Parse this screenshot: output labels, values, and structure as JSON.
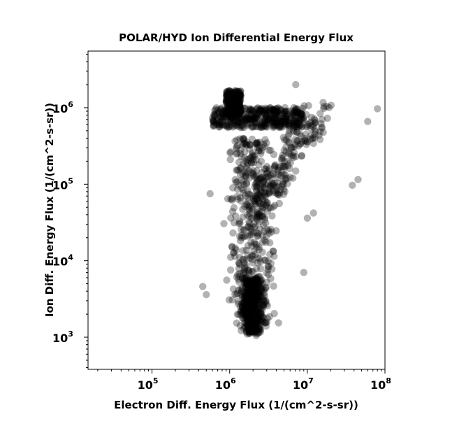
{
  "chart_data": {
    "type": "scatter",
    "title": "POLAR/HYD  Ion Differential Energy Flux",
    "xlabel": "Electron Diff. Energy Flux (1/(cm^2-s-sr))",
    "ylabel": "Ion Diff. Energy Flux (1/(cm^2-s-sr))",
    "xscale": "log",
    "yscale": "log",
    "xlim": [
      15000,
      100000000
    ],
    "ylim": [
      380,
      5500000
    ],
    "xticks": [
      {
        "base": "10",
        "exp": "5",
        "value": 100000
      },
      {
        "base": "10",
        "exp": "6",
        "value": 1000000
      },
      {
        "base": "10",
        "exp": "7",
        "value": 10000000
      },
      {
        "base": "10",
        "exp": "8",
        "value": 100000000
      }
    ],
    "yticks": [
      {
        "base": "10",
        "exp": "3",
        "value": 1000
      },
      {
        "base": "10",
        "exp": "4",
        "value": 10000
      },
      {
        "base": "10",
        "exp": "5",
        "value": 100000
      },
      {
        "base": "10",
        "exp": "6",
        "value": 1000000
      }
    ],
    "grid": false,
    "marker_color": "#000000",
    "marker_opacity": 0.3,
    "clusters": [
      {
        "name": "upper-band",
        "x_range": [
          600000,
          9000000
        ],
        "y_range": [
          550000,
          1000000
        ],
        "density": "very high"
      },
      {
        "name": "upper-blob",
        "x_range": [
          900000,
          1400000
        ],
        "y_range": [
          800000,
          1700000
        ],
        "density": "high"
      },
      {
        "name": "diagonal-arm",
        "x_range": [
          2000000,
          14000000
        ],
        "y_range": [
          40000,
          900000
        ],
        "density": "high"
      },
      {
        "name": "central-column",
        "x_range": [
          700000,
          5000000
        ],
        "y_range": [
          1500,
          400000
        ],
        "density": "very high"
      },
      {
        "name": "lower-core",
        "x_range": [
          1200000,
          3200000
        ],
        "y_range": [
          1100,
          6000
        ],
        "density": "very high"
      }
    ],
    "outliers": [
      {
        "x": 7100000,
        "y": 2000000
      },
      {
        "x": 80000000,
        "y": 970000
      },
      {
        "x": 60000000,
        "y": 660000
      },
      {
        "x": 45000000,
        "y": 115000
      },
      {
        "x": 38000000,
        "y": 97000
      },
      {
        "x": 9000000,
        "y": 7000
      },
      {
        "x": 450000,
        "y": 4600
      },
      {
        "x": 500000,
        "y": 3600
      },
      {
        "x": 2200000,
        "y": 1050
      },
      {
        "x": 12000000,
        "y": 42000
      },
      {
        "x": 10000000,
        "y": 36000
      },
      {
        "x": 560000,
        "y": 75000
      }
    ]
  }
}
